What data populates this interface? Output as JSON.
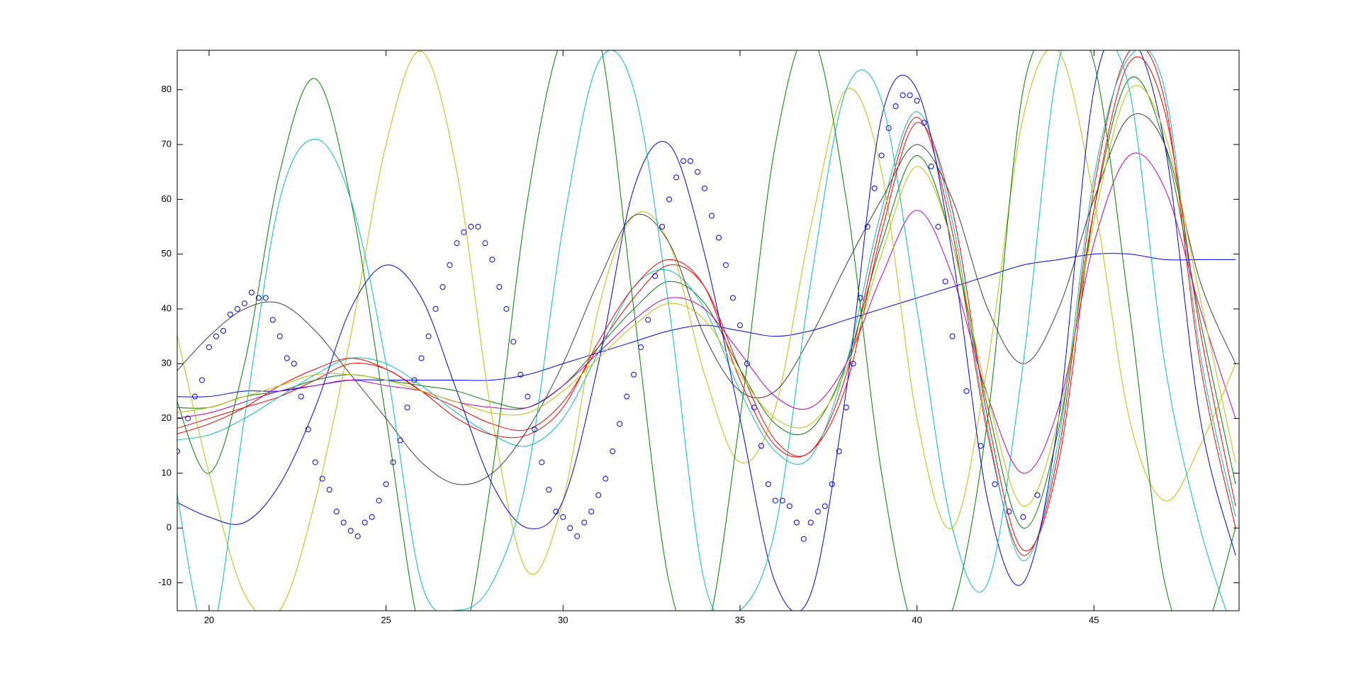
{
  "chart_data": {
    "type": "line",
    "xlim": [
      19.1,
      49.1
    ],
    "ylim": [
      -15.1,
      87.2
    ],
    "xticks": [
      20,
      25,
      30,
      35,
      40,
      45
    ],
    "yticks": [
      -10,
      0,
      10,
      20,
      30,
      40,
      50,
      60,
      70,
      80
    ],
    "x": [
      19,
      20,
      21,
      22,
      23,
      24,
      25,
      26,
      27,
      28,
      29,
      30,
      31,
      32,
      33,
      34,
      35,
      36,
      37,
      38,
      39,
      40,
      41,
      42,
      43,
      44,
      45,
      46,
      47,
      48,
      49
    ],
    "series": [
      {
        "color": "#ff0000",
        "values": [
          18,
          20,
          22,
          24,
          27,
          30,
          29,
          25,
          22,
          19,
          18,
          23,
          33,
          42,
          48,
          44,
          29,
          16,
          14,
          28,
          56,
          75,
          54,
          17,
          -5,
          14,
          62,
          87,
          78,
          30,
          0
        ]
      },
      {
        "color": "#008000",
        "values": [
          22,
          22,
          24,
          25,
          27,
          28,
          27,
          26,
          25,
          23,
          22,
          26,
          33,
          40,
          45,
          41,
          29,
          19,
          18,
          30,
          52,
          68,
          52,
          22,
          0,
          18,
          58,
          82,
          70,
          38,
          8
        ]
      },
      {
        "color": "#0000ff",
        "values": [
          24,
          24,
          25,
          25,
          26,
          27,
          27,
          27,
          27,
          27,
          28,
          30,
          32,
          34,
          36,
          37,
          36,
          35,
          36,
          38,
          40,
          42,
          44,
          46,
          48,
          49,
          50,
          50,
          49,
          49,
          49
        ]
      },
      {
        "color": "#00bfbf",
        "values": [
          16,
          17,
          20,
          24,
          28,
          31,
          30,
          26,
          21,
          17,
          15,
          20,
          32,
          44,
          47,
          40,
          25,
          14,
          13,
          30,
          58,
          76,
          56,
          18,
          -6,
          16,
          64,
          86,
          80,
          32,
          2
        ]
      },
      {
        "color": "#bf00bf",
        "values": [
          20,
          21,
          23,
          25,
          26,
          27,
          26,
          25,
          23,
          22,
          22,
          26,
          32,
          38,
          42,
          40,
          32,
          24,
          22,
          30,
          46,
          58,
          46,
          24,
          10,
          22,
          52,
          68,
          62,
          40,
          20
        ]
      },
      {
        "color": "#bfbf00",
        "values": [
          38,
          10,
          -12,
          -15,
          5,
          35,
          70,
          87,
          65,
          20,
          -8,
          5,
          40,
          57,
          52,
          28,
          12,
          22,
          55,
          80,
          65,
          20,
          0,
          30,
          75,
          87,
          60,
          20,
          5,
          15,
          30
        ]
      },
      {
        "color": "#008000",
        "values": [
          25,
          10,
          30,
          65,
          82,
          60,
          20,
          -20,
          -25,
          10,
          60,
          90,
          90,
          40,
          -10,
          -20,
          20,
          70,
          90,
          60,
          10,
          -20,
          -15,
          20,
          80,
          90,
          85,
          40,
          -10,
          -20,
          0
        ]
      },
      {
        "color": "#404040",
        "values": [
          28,
          35,
          40,
          41,
          36,
          28,
          20,
          12,
          8,
          10,
          18,
          30,
          45,
          57,
          52,
          35,
          25,
          25,
          35,
          48,
          60,
          70,
          60,
          40,
          30,
          40,
          60,
          75,
          70,
          45,
          30
        ]
      },
      {
        "color": "#0000ff",
        "values": [
          5,
          2,
          1,
          8,
          22,
          40,
          48,
          42,
          25,
          8,
          0,
          5,
          30,
          62,
          70,
          50,
          20,
          -10,
          -12,
          25,
          75,
          80,
          50,
          5,
          -10,
          20,
          80,
          90,
          70,
          20,
          -5
        ]
      },
      {
        "color": "#00bfbf",
        "values": [
          10,
          -20,
          20,
          60,
          71,
          60,
          30,
          -10,
          -15,
          -10,
          10,
          55,
          85,
          80,
          40,
          -10,
          -15,
          0,
          45,
          80,
          78,
          40,
          0,
          -10,
          30,
          85,
          90,
          80,
          30,
          0,
          -20
        ]
      },
      {
        "color": "#ff0000",
        "values": [
          17,
          19,
          22,
          26,
          29,
          31,
          29,
          25,
          20,
          17,
          17,
          22,
          34,
          44,
          49,
          44,
          27,
          15,
          14,
          26,
          54,
          74,
          58,
          20,
          -4,
          12,
          58,
          85,
          76,
          36,
          4
        ]
      },
      {
        "color": "#bfbf00",
        "values": [
          21,
          22,
          24,
          26,
          28,
          28,
          27,
          25,
          23,
          21,
          21,
          25,
          31,
          37,
          41,
          38,
          28,
          20,
          19,
          29,
          50,
          66,
          52,
          24,
          4,
          20,
          56,
          80,
          72,
          42,
          12
        ]
      }
    ],
    "scatter": {
      "color": "#0000ff",
      "x": [
        19.1,
        19.4,
        19.6,
        19.8,
        20,
        20.2,
        20.4,
        20.6,
        20.8,
        21,
        21.2,
        21.4,
        21.6,
        21.8,
        22,
        22.2,
        22.4,
        22.6,
        22.8,
        23,
        23.2,
        23.4,
        23.6,
        23.8,
        24,
        24.2,
        24.4,
        24.6,
        24.8,
        25,
        25.2,
        25.4,
        25.6,
        25.8,
        26,
        26.2,
        26.4,
        26.6,
        26.8,
        27,
        27.2,
        27.4,
        27.6,
        27.8,
        28,
        28.2,
        28.4,
        28.6,
        28.8,
        29,
        29.2,
        29.4,
        29.6,
        29.8,
        30,
        30.2,
        30.4,
        30.6,
        30.8,
        31,
        31.2,
        31.4,
        31.6,
        31.8,
        32,
        32.2,
        32.4,
        32.6,
        32.8,
        33,
        33.2,
        33.4,
        33.6,
        33.8,
        34,
        34.2,
        34.4,
        34.6,
        34.8,
        35,
        35.2,
        35.4,
        35.6,
        35.8,
        36,
        36.2,
        36.4,
        36.6,
        36.8,
        37,
        37.2,
        37.4,
        37.6,
        37.8,
        38,
        38.2,
        38.4,
        38.6,
        38.8,
        39,
        39.2,
        39.4,
        39.6,
        39.8,
        40,
        40.2,
        40.4,
        40.6,
        40.8,
        41,
        41.4,
        41.8,
        42.2,
        42.6,
        43,
        43.4
      ],
      "y": [
        14,
        20,
        24,
        27,
        33,
        35,
        36,
        39,
        40,
        41,
        43,
        42,
        42,
        38,
        35,
        31,
        30,
        24,
        18,
        12,
        9,
        7,
        3,
        1,
        -0.5,
        -1.5,
        1,
        2,
        5,
        8,
        12,
        16,
        22,
        27,
        31,
        35,
        40,
        44,
        48,
        52,
        54,
        55,
        55,
        52,
        49,
        44,
        40,
        34,
        28,
        24,
        18,
        12,
        7,
        3,
        2,
        0,
        -1.5,
        1,
        3,
        6,
        9,
        14,
        19,
        24,
        28,
        33,
        38,
        46,
        55,
        60,
        64,
        67,
        67,
        65,
        62,
        57,
        53,
        48,
        42,
        37,
        30,
        22,
        15,
        8,
        5,
        5,
        4,
        1,
        -2,
        1,
        3,
        4,
        8,
        14,
        22,
        30,
        42,
        55,
        62,
        68,
        73,
        77,
        79,
        79,
        78,
        74,
        66,
        55,
        45,
        35,
        25,
        15,
        8,
        3,
        2,
        6
      ]
    }
  }
}
